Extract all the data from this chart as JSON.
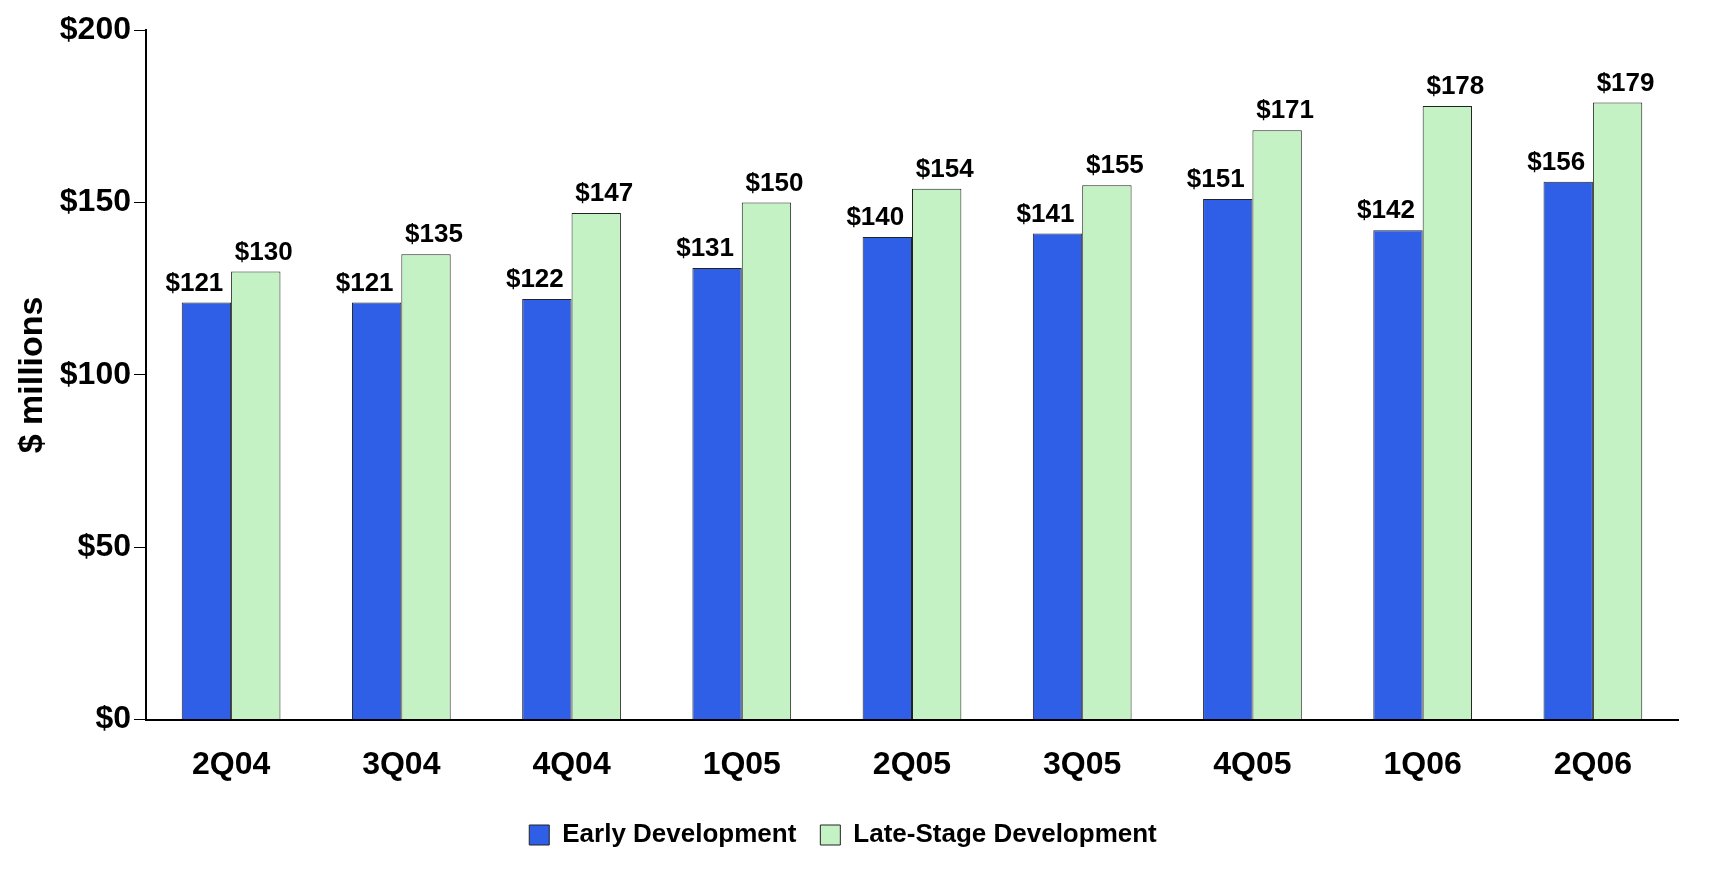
{
  "chart_data": {
    "type": "bar",
    "ylabel": "$ millions",
    "categories": [
      "2Q04",
      "3Q04",
      "4Q04",
      "1Q05",
      "2Q05",
      "3Q05",
      "4Q05",
      "1Q06",
      "2Q06"
    ],
    "series": [
      {
        "name": "Early Development",
        "color": "#2f5fe6",
        "values": [
          121,
          121,
          122,
          131,
          140,
          141,
          151,
          142,
          156
        ],
        "value_labels": [
          "$121",
          "$121",
          "$122",
          "$131",
          "$140",
          "$141",
          "$151",
          "$142",
          "$156"
        ]
      },
      {
        "name": "Late-Stage Development",
        "color": "#c4f2c4",
        "values": [
          130,
          135,
          147,
          150,
          154,
          155,
          171,
          178,
          179
        ],
        "value_labels": [
          "$130",
          "$135",
          "$147",
          "$150",
          "$154",
          "$155",
          "$171",
          "$178",
          "$179"
        ]
      }
    ],
    "ylim": [
      0,
      200
    ],
    "yticks": [
      {
        "value": 0,
        "label": "$0"
      },
      {
        "value": 50,
        "label": "$50"
      },
      {
        "value": 100,
        "label": "$100"
      },
      {
        "value": 150,
        "label": "$150"
      },
      {
        "value": 200,
        "label": "$200"
      }
    ],
    "grid": false,
    "legend": "bottom"
  }
}
